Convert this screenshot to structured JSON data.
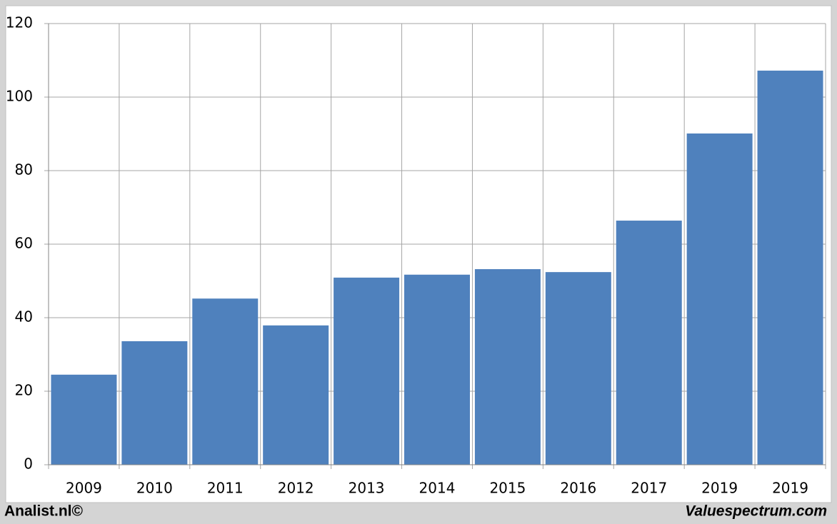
{
  "chart_data": {
    "type": "bar",
    "categories": [
      "2009",
      "2010",
      "2011",
      "2012",
      "2013",
      "2014",
      "2015",
      "2016",
      "2017",
      "2019",
      "2019"
    ],
    "values": [
      24.5,
      33.6,
      45.2,
      37.9,
      50.9,
      51.7,
      53.2,
      52.4,
      66.4,
      90.1,
      107.2
    ],
    "color": "#4f81bd",
    "ylim": [
      0,
      120
    ],
    "yticks": [
      0,
      20,
      40,
      60,
      80,
      100,
      120
    ],
    "grid": true,
    "footer_left": "Analist.nl©",
    "footer_right": "Valuespectrum.com"
  }
}
